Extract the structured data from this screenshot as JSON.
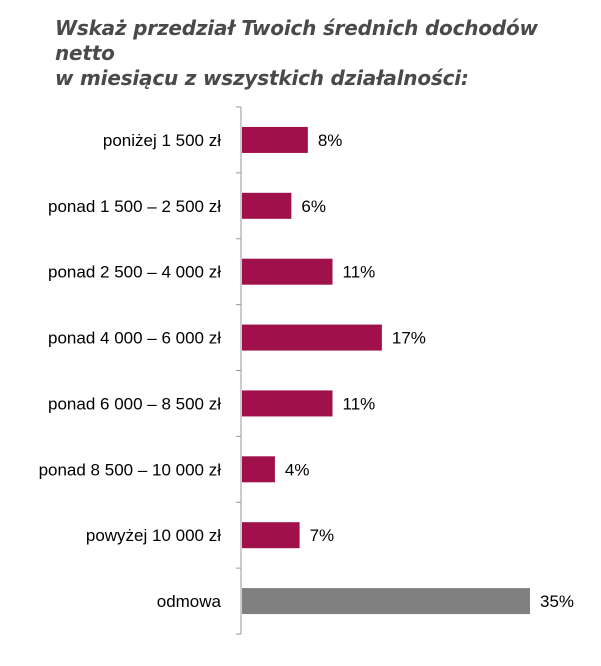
{
  "title_lines": [
    "Wskaż przedział Twoich średnich dochodów netto",
    "w miesiącu z wszystkich działalności:"
  ],
  "chart_data": {
    "type": "bar",
    "orientation": "horizontal",
    "title": "Wskaż przedział Twoich średnich dochodów netto w miesiącu z wszystkich działalności:",
    "categories": [
      "poniżej 1 500 zł",
      "ponad 1 500 – 2 500 zł",
      "ponad 2 500 – 4 000 zł",
      "ponad 4 000 – 6 000 zł",
      "ponad 6 000 – 8 500 zł",
      "ponad 8 500 – 10 000 zł",
      "powyżej 10 000 zł",
      "odmowa"
    ],
    "values": [
      8,
      6,
      11,
      17,
      11,
      4,
      7,
      35
    ],
    "value_labels": [
      "8%",
      "6%",
      "11%",
      "17%",
      "11%",
      "4%",
      "7%",
      "35%"
    ],
    "colors": [
      "#A0104A",
      "#A0104A",
      "#A0104A",
      "#A0104A",
      "#A0104A",
      "#A0104A",
      "#A0104A",
      "#808080"
    ],
    "xlim": [
      0,
      35
    ],
    "grid": false,
    "legend": "none",
    "xlabel": "",
    "ylabel": ""
  }
}
